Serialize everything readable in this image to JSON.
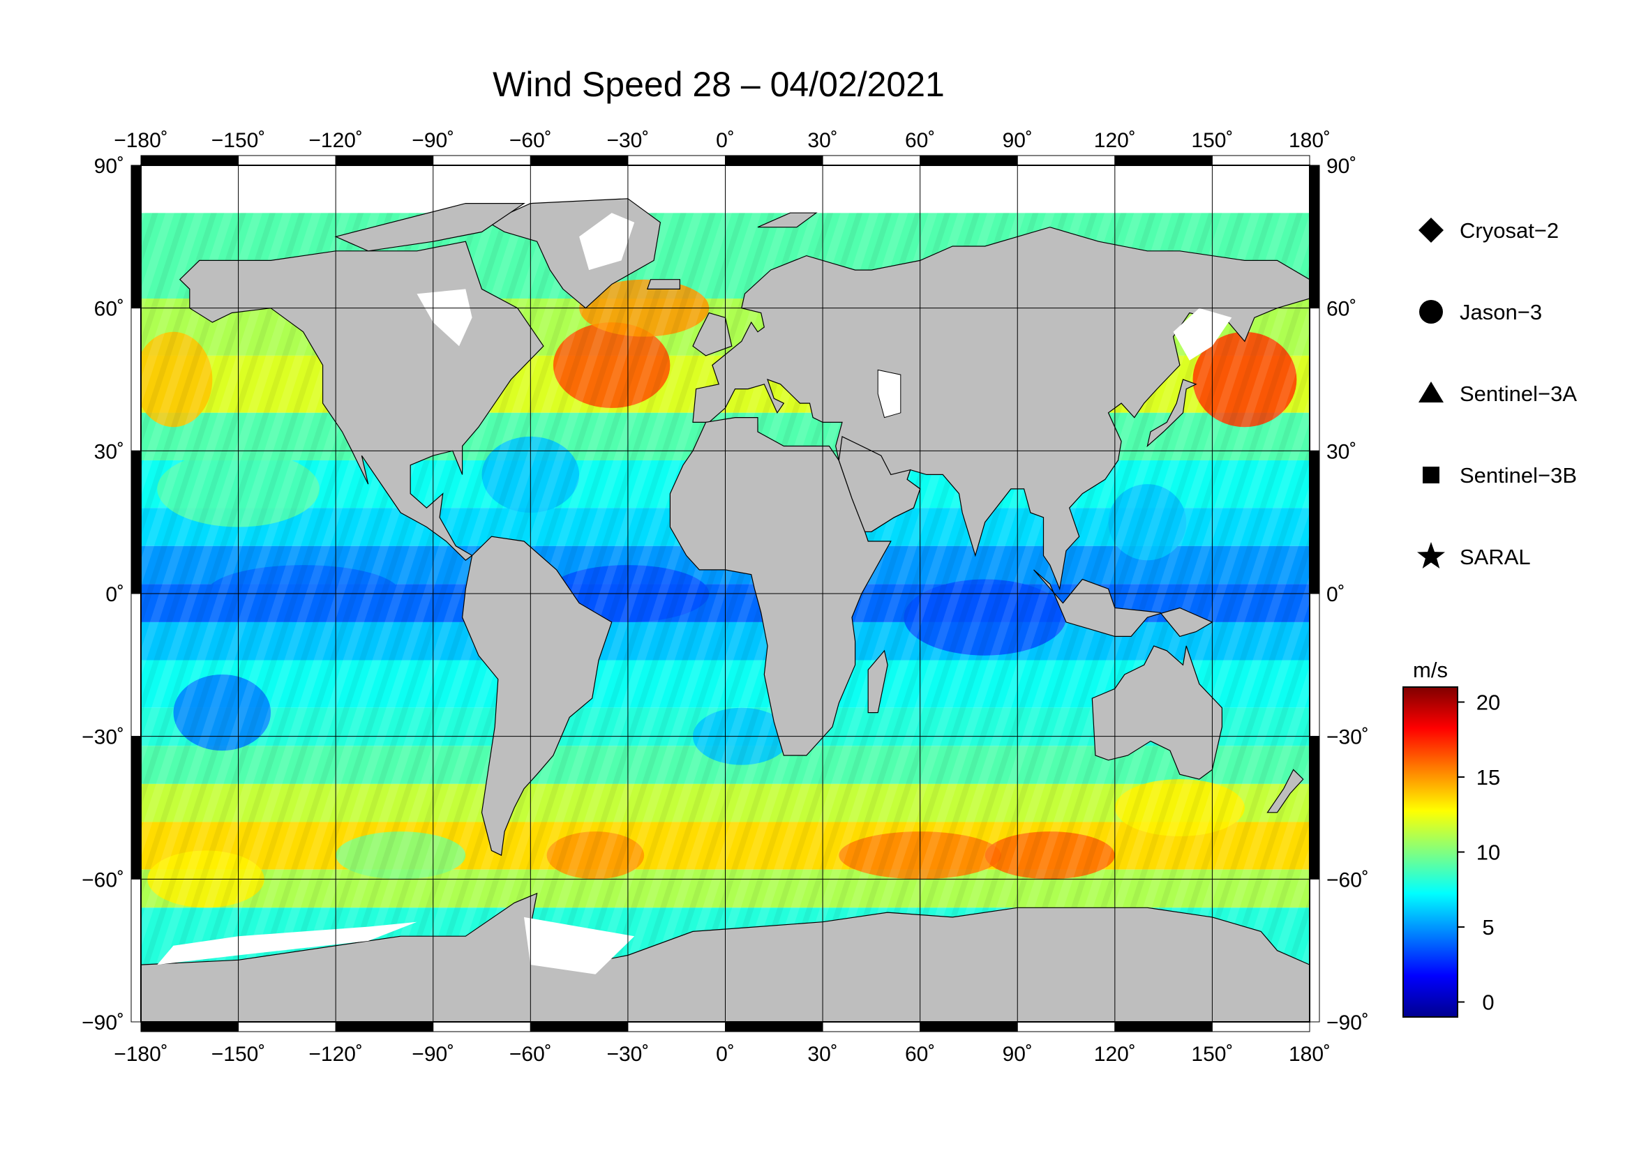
{
  "title": "Wind Speed 28 – 04/02/2021",
  "map": {
    "lon_range": [
      -180,
      180
    ],
    "lat_range": [
      -90,
      90
    ],
    "lon_ticks": [
      {
        "value": -180,
        "label": "−180˚"
      },
      {
        "value": -150,
        "label": "−150˚"
      },
      {
        "value": -120,
        "label": "−120˚"
      },
      {
        "value": -90,
        "label": "−90˚"
      },
      {
        "value": -60,
        "label": "−60˚"
      },
      {
        "value": -30,
        "label": "−30˚"
      },
      {
        "value": 0,
        "label": "0˚"
      },
      {
        "value": 30,
        "label": "30˚"
      },
      {
        "value": 60,
        "label": "60˚"
      },
      {
        "value": 90,
        "label": "90˚"
      },
      {
        "value": 120,
        "label": "120˚"
      },
      {
        "value": 150,
        "label": "150˚"
      },
      {
        "value": 180,
        "label": "180˚"
      }
    ],
    "lat_ticks": [
      {
        "value": 90,
        "label": "90˚"
      },
      {
        "value": 60,
        "label": "60˚"
      },
      {
        "value": 30,
        "label": "30˚"
      },
      {
        "value": 0,
        "label": "0˚"
      },
      {
        "value": -30,
        "label": "−30˚"
      },
      {
        "value": -60,
        "label": "−60˚"
      },
      {
        "value": -90,
        "label": "−90˚"
      }
    ],
    "land_color": "#bebebe",
    "ice_color": "#ffffff",
    "grid": true
  },
  "legend": {
    "placement": "right",
    "items": [
      {
        "icon": "diamond-icon",
        "label": "Cryosat−2"
      },
      {
        "icon": "circle-icon",
        "label": "Jason−3"
      },
      {
        "icon": "triangle-icon",
        "label": "Sentinel−3A"
      },
      {
        "icon": "square-icon",
        "label": "Sentinel−3B"
      },
      {
        "icon": "star-icon",
        "label": "SARAL"
      }
    ]
  },
  "colorbar": {
    "unit": "m/s",
    "range": [
      -1,
      21
    ],
    "ticks": [
      {
        "value": 20,
        "label": "20"
      },
      {
        "value": 15,
        "label": "15"
      },
      {
        "value": 10,
        "label": "10"
      },
      {
        "value": 5,
        "label": "5"
      },
      {
        "value": 0,
        "label": "0"
      }
    ],
    "colormap": [
      "#00008f",
      "#0000ff",
      "#0080ff",
      "#00ffff",
      "#80ff80",
      "#ffff00",
      "#ff8000",
      "#ff0000",
      "#800000"
    ]
  }
}
